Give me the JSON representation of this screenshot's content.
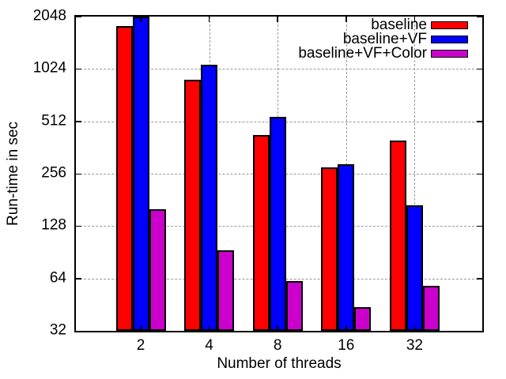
{
  "chart_data": {
    "type": "bar",
    "title": "",
    "xlabel": "Number of threads",
    "ylabel": "Run-time in sec",
    "x_categories": [
      "2",
      "4",
      "8",
      "16",
      "32"
    ],
    "y_scale": "log2",
    "ylim": [
      32,
      2048
    ],
    "y_ticks": [
      32,
      64,
      128,
      256,
      512,
      1024,
      2048
    ],
    "y_tick_labels": [
      "32",
      "64",
      "128",
      "256",
      "512",
      "1024",
      "2048"
    ],
    "grid": true,
    "legend_position": "top-right-inside",
    "series": [
      {
        "name": "baseline",
        "color": "#ff0000",
        "values": [
          1800,
          890,
          425,
          278,
          395
        ]
      },
      {
        "name": "baseline+VF",
        "color": "#0000ff",
        "values": [
          2040,
          1080,
          545,
          290,
          168
        ]
      },
      {
        "name": "baseline+VF+Color",
        "color": "#cc00cc",
        "values": [
          160,
          93,
          62,
          44,
          58
        ]
      }
    ]
  },
  "colors": {
    "background": "#ffffff",
    "axis": "#000000",
    "grid": "#9a9a9a",
    "text": "#000000"
  }
}
